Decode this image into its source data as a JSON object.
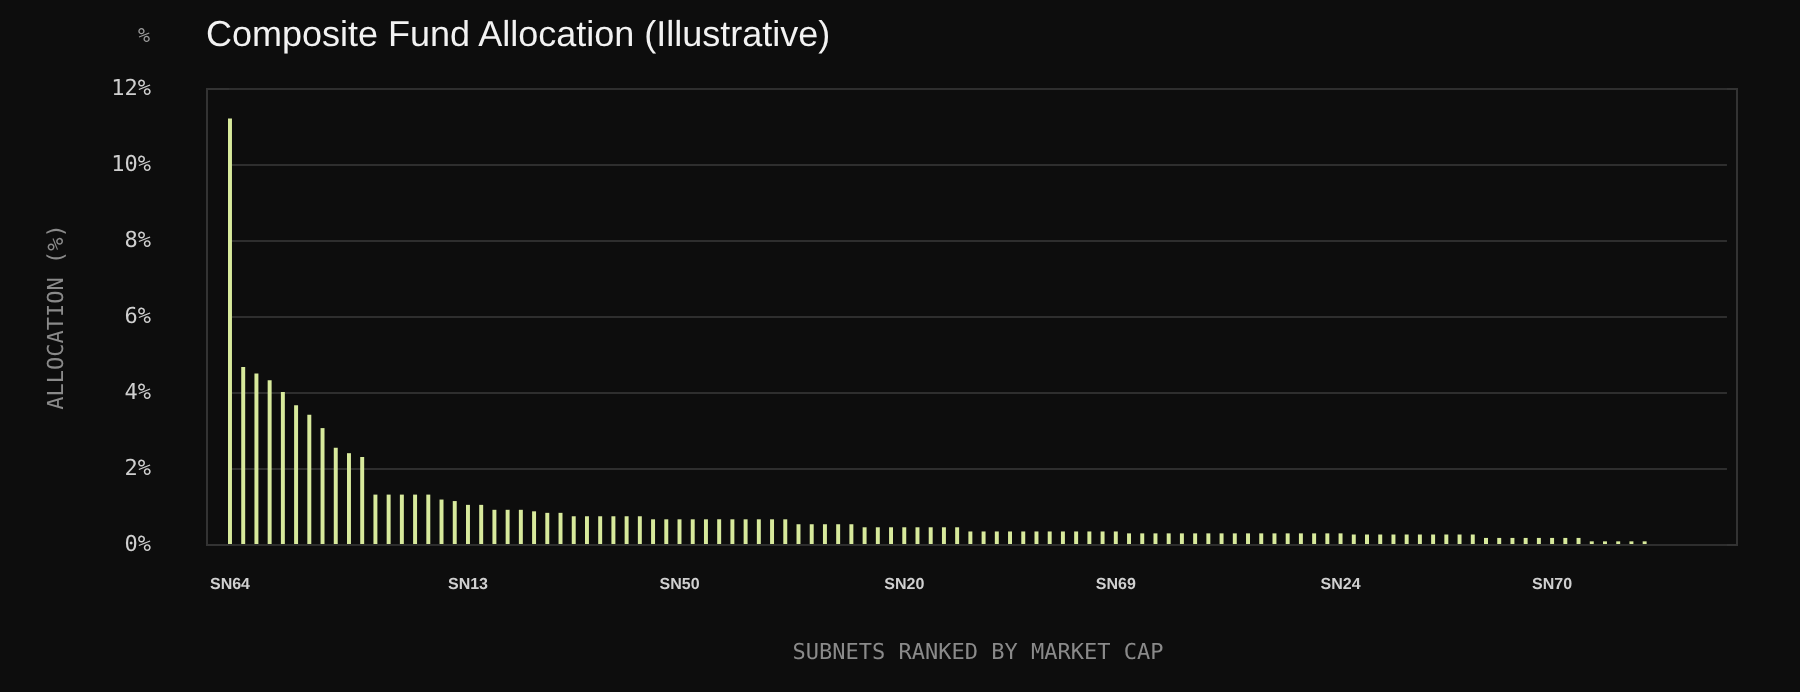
{
  "chart_data": {
    "type": "bar",
    "title": "Composite Fund Allocation (Illustrative)",
    "xlabel": "SUBNETS RANKED BY MARKET CAP",
    "ylabel": "ALLOCATION (%)",
    "annotations": [
      "%"
    ],
    "categories": [
      "SN64",
      null,
      null,
      null,
      null,
      null,
      null,
      null,
      null,
      null,
      null,
      null,
      null,
      null,
      null,
      null,
      null,
      null,
      "SN13",
      null,
      null,
      null,
      null,
      null,
      null,
      null,
      null,
      null,
      null,
      null,
      null,
      null,
      null,
      null,
      "SN50",
      null,
      null,
      null,
      null,
      null,
      null,
      null,
      null,
      null,
      null,
      null,
      null,
      null,
      null,
      null,
      null,
      "SN20",
      null,
      null,
      null,
      null,
      null,
      null,
      null,
      null,
      null,
      null,
      null,
      null,
      null,
      null,
      null,
      "SN69",
      null,
      null,
      null,
      null,
      null,
      null,
      null,
      null,
      null,
      null,
      null,
      null,
      null,
      null,
      null,
      null,
      "SN24",
      null,
      null,
      null,
      null,
      null,
      null,
      null,
      null,
      null,
      null,
      null,
      null,
      null,
      null,
      null,
      "SN70",
      null,
      null,
      null,
      null,
      null,
      null,
      null
    ],
    "values": [
      11.2,
      4.66,
      4.49,
      4.31,
      4.0,
      3.65,
      3.4,
      3.05,
      2.53,
      2.39,
      2.29,
      1.3,
      1.3,
      1.3,
      1.3,
      1.3,
      1.17,
      1.13,
      1.03,
      1.03,
      0.9,
      0.9,
      0.9,
      0.86,
      0.82,
      0.82,
      0.73,
      0.73,
      0.73,
      0.73,
      0.73,
      0.73,
      0.65,
      0.65,
      0.65,
      0.65,
      0.65,
      0.65,
      0.65,
      0.65,
      0.65,
      0.65,
      0.65,
      0.52,
      0.52,
      0.52,
      0.52,
      0.52,
      0.44,
      0.44,
      0.44,
      0.44,
      0.44,
      0.44,
      0.44,
      0.44,
      0.33,
      0.33,
      0.33,
      0.33,
      0.33,
      0.33,
      0.33,
      0.33,
      0.33,
      0.33,
      0.33,
      0.33,
      0.28,
      0.28,
      0.28,
      0.28,
      0.28,
      0.28,
      0.28,
      0.28,
      0.28,
      0.28,
      0.28,
      0.28,
      0.28,
      0.28,
      0.28,
      0.28,
      0.28,
      0.25,
      0.25,
      0.25,
      0.25,
      0.25,
      0.25,
      0.25,
      0.25,
      0.25,
      0.25,
      0.16,
      0.16,
      0.16,
      0.16,
      0.16,
      0.16,
      0.16,
      0.16,
      0.07,
      0.07,
      0.07,
      0.07,
      0.07
    ],
    "color": "#d8ea9c",
    "ylim": [
      0,
      12
    ],
    "yticks": [
      {
        "value": 0,
        "label": "0%"
      },
      {
        "value": 2,
        "label": "2%"
      },
      {
        "value": 4,
        "label": "4%"
      },
      {
        "value": 6,
        "label": "6%"
      },
      {
        "value": 8,
        "label": "8%"
      },
      {
        "value": 10,
        "label": "10%"
      },
      {
        "value": 12,
        "label": "12%"
      }
    ],
    "grid": "y"
  }
}
